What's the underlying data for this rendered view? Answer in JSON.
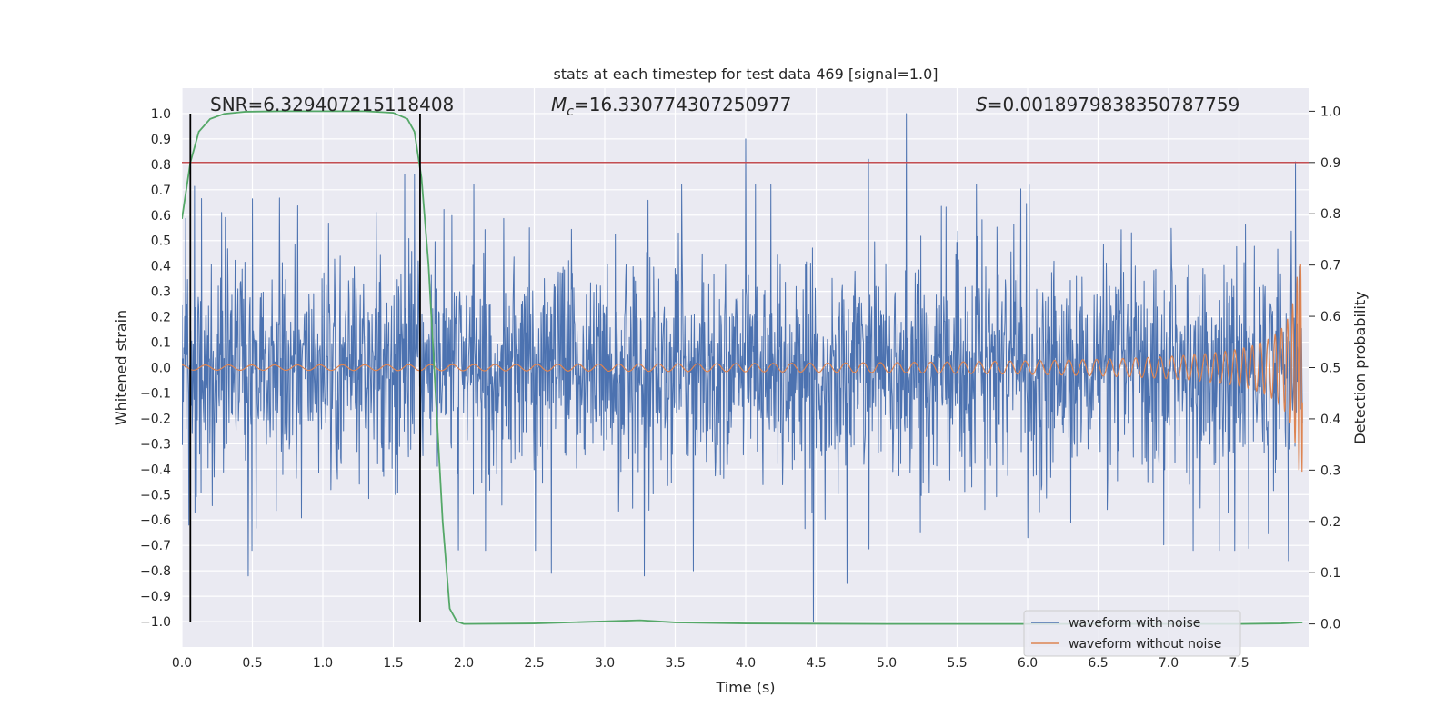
{
  "chart_data": {
    "type": "line",
    "title": "stats at each timestep for test data 469 [signal=1.0]",
    "xlabel": "Time (s)",
    "ylabel": "Whitened strain",
    "ylabel_right": "Detection probability",
    "xlim": [
      0.0,
      8.0
    ],
    "ylim": [
      -1.1,
      1.1
    ],
    "ylim_right": [
      -0.045,
      1.045
    ],
    "x_ticks": [
      0.0,
      0.5,
      1.0,
      1.5,
      2.0,
      2.5,
      3.0,
      3.5,
      4.0,
      4.5,
      5.0,
      5.5,
      6.0,
      6.5,
      7.0,
      7.5
    ],
    "x_tick_labels": [
      "0.0",
      "0.5",
      "1.0",
      "1.5",
      "2.0",
      "2.5",
      "3.0",
      "3.5",
      "4.0",
      "4.5",
      "5.0",
      "5.5",
      "6.0",
      "6.5",
      "7.0",
      "7.5"
    ],
    "y_ticks": [
      1.0,
      0.9,
      0.8,
      0.7,
      0.6,
      0.5,
      0.4,
      0.3,
      0.2,
      0.1,
      0.0,
      -0.1,
      -0.2,
      -0.3,
      -0.4,
      -0.5,
      -0.6,
      -0.7,
      -0.8,
      -0.9,
      -1.0
    ],
    "y_tick_labels": [
      "1.0",
      "0.9",
      "0.8",
      "0.7",
      "0.6",
      "0.5",
      "0.4",
      "0.3",
      "0.2",
      "0.1",
      "0.0",
      "−0.1",
      "−0.2",
      "−0.3",
      "−0.4",
      "−0.5",
      "−0.6",
      "−0.7",
      "−0.8",
      "−0.9",
      "−1.0"
    ],
    "y2_ticks": [
      1.0,
      0.9,
      0.8,
      0.7,
      0.6,
      0.5,
      0.4,
      0.3,
      0.2,
      0.1,
      0.0
    ],
    "y2_tick_labels": [
      "1.0",
      "0.9",
      "0.8",
      "0.7",
      "0.6",
      "0.5",
      "0.4",
      "0.3",
      "0.2",
      "0.1",
      "0.0"
    ],
    "annotations": {
      "snr": "SNR=6.329407215118408",
      "mc_symbol": "M",
      "mc_sub": "c",
      "mc_value": "=16.330774307250977",
      "s_symbol": "S",
      "s_value": "=0.0018979838350787759"
    },
    "threshold": {
      "value_right": 0.9,
      "color": "#c44e52"
    },
    "vertical_markers": [
      0.06,
      1.69
    ],
    "grid": true,
    "legend": {
      "position": "bottom-right",
      "entries": [
        "waveform with noise",
        "waveform without noise"
      ]
    },
    "series": [
      {
        "name": "waveform with noise",
        "color": "#4c72b0",
        "kind": "noise",
        "duration": 7.95,
        "samples": 2400,
        "base_amplitude": 0.19,
        "spike_events": [
          {
            "x": 0.05,
            "y": -0.62
          },
          {
            "x": 0.47,
            "y": -0.82
          },
          {
            "x": 1.58,
            "y": 0.76
          },
          {
            "x": 1.65,
            "y": 0.76
          },
          {
            "x": 2.62,
            "y": -0.81
          },
          {
            "x": 3.28,
            "y": -0.82
          },
          {
            "x": 3.63,
            "y": -0.8
          },
          {
            "x": 4.0,
            "y": 0.9
          },
          {
            "x": 4.48,
            "y": -1.0
          },
          {
            "x": 4.72,
            "y": -0.85
          },
          {
            "x": 4.87,
            "y": 0.82
          },
          {
            "x": 5.14,
            "y": 1.0
          },
          {
            "x": 6.0,
            "y": -0.67
          },
          {
            "x": 7.36,
            "y": -0.72
          },
          {
            "x": 7.85,
            "y": -0.76
          },
          {
            "x": 7.9,
            "y": 0.81
          }
        ]
      },
      {
        "name": "waveform without noise",
        "color": "#dd8452",
        "kind": "chirp",
        "duration": 7.95,
        "t_merge": 7.96,
        "peak_amplitude": 0.41,
        "start_amplitude": 0.01
      },
      {
        "name": "detection probability",
        "color": "#55a868",
        "axis": "right",
        "x": [
          0.0,
          0.06,
          0.12,
          0.2,
          0.3,
          0.45,
          0.7,
          1.0,
          1.3,
          1.5,
          1.6,
          1.65,
          1.7,
          1.75,
          1.8,
          1.85,
          1.9,
          1.95,
          2.0,
          2.5,
          3.0,
          3.25,
          3.5,
          4.0,
          5.0,
          6.0,
          7.0,
          7.5,
          7.8,
          7.95
        ],
        "y": [
          0.79,
          0.9,
          0.96,
          0.985,
          0.995,
          0.999,
          1.0,
          1.0,
          1.0,
          0.997,
          0.985,
          0.96,
          0.87,
          0.7,
          0.45,
          0.2,
          0.03,
          0.005,
          0.0,
          0.001,
          0.005,
          0.007,
          0.003,
          0.001,
          0.0,
          0.0,
          0.0,
          0.0,
          0.001,
          0.003
        ]
      }
    ]
  }
}
